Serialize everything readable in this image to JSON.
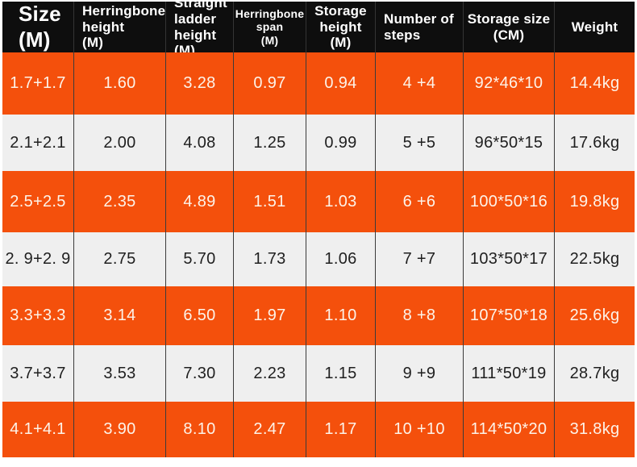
{
  "chart_data": {
    "type": "table",
    "headers": [
      "Size\n(M)",
      "Herringbone\nheight\n(M)",
      "Straight\nladder\nheight (M)",
      "Herringbone\nspan\n(M)",
      "Storage\nheight\n(M)",
      "Number of\nsteps",
      "Storage size\n(CM)",
      "Weight"
    ],
    "columns_semantic": [
      "size-m",
      "herringbone-height-m",
      "straight-ladder-height-m",
      "herringbone-span-m",
      "storage-height-m",
      "number-of-steps",
      "storage-size-cm",
      "weight"
    ],
    "rows": [
      [
        "1.7+1.7",
        "1.60",
        "3.28",
        "0.97",
        "0.94",
        "4 +4",
        "92*46*10",
        "14.4kg"
      ],
      [
        "2.1+2.1",
        "2.00",
        "4.08",
        "1.25",
        "0.99",
        "5 +5",
        "96*50*15",
        "17.6kg"
      ],
      [
        "2.5+2.5",
        "2.35",
        "4.89",
        "1.51",
        "1.03",
        "6 +6",
        "100*50*16",
        "19.8kg"
      ],
      [
        "2. 9+2. 9",
        "2.75",
        "5.70",
        "1.73",
        "1.06",
        "7 +7",
        "103*50*17",
        "22.5kg"
      ],
      [
        "3.3+3.3",
        "3.14",
        "6.50",
        "1.97",
        "1.10",
        "8 +8",
        "107*50*18",
        "25.6kg"
      ],
      [
        "3.7+3.7",
        "3.53",
        "7.30",
        "2.23",
        "1.15",
        "9 +9",
        "111*50*19",
        "28.7kg"
      ],
      [
        "4.1+4.1",
        "3.90",
        "8.10",
        "2.47",
        "1.17",
        "10 +10",
        "114*50*20",
        "31.8kg"
      ]
    ],
    "row_fill_pattern": [
      "orange",
      "light",
      "orange",
      "light",
      "orange",
      "light",
      "orange"
    ],
    "colors": {
      "accent_orange": "#f4500c",
      "header_background": "#0e0e0e",
      "header_text": "#ffffff",
      "light_row_background": "#efefef",
      "dark_text": "#1f1f1f",
      "orange_row_text": "#fdf3e9",
      "divider": "#3b3b3b"
    },
    "grid": "vertical dividers only",
    "legend_position": "none",
    "title": ""
  }
}
